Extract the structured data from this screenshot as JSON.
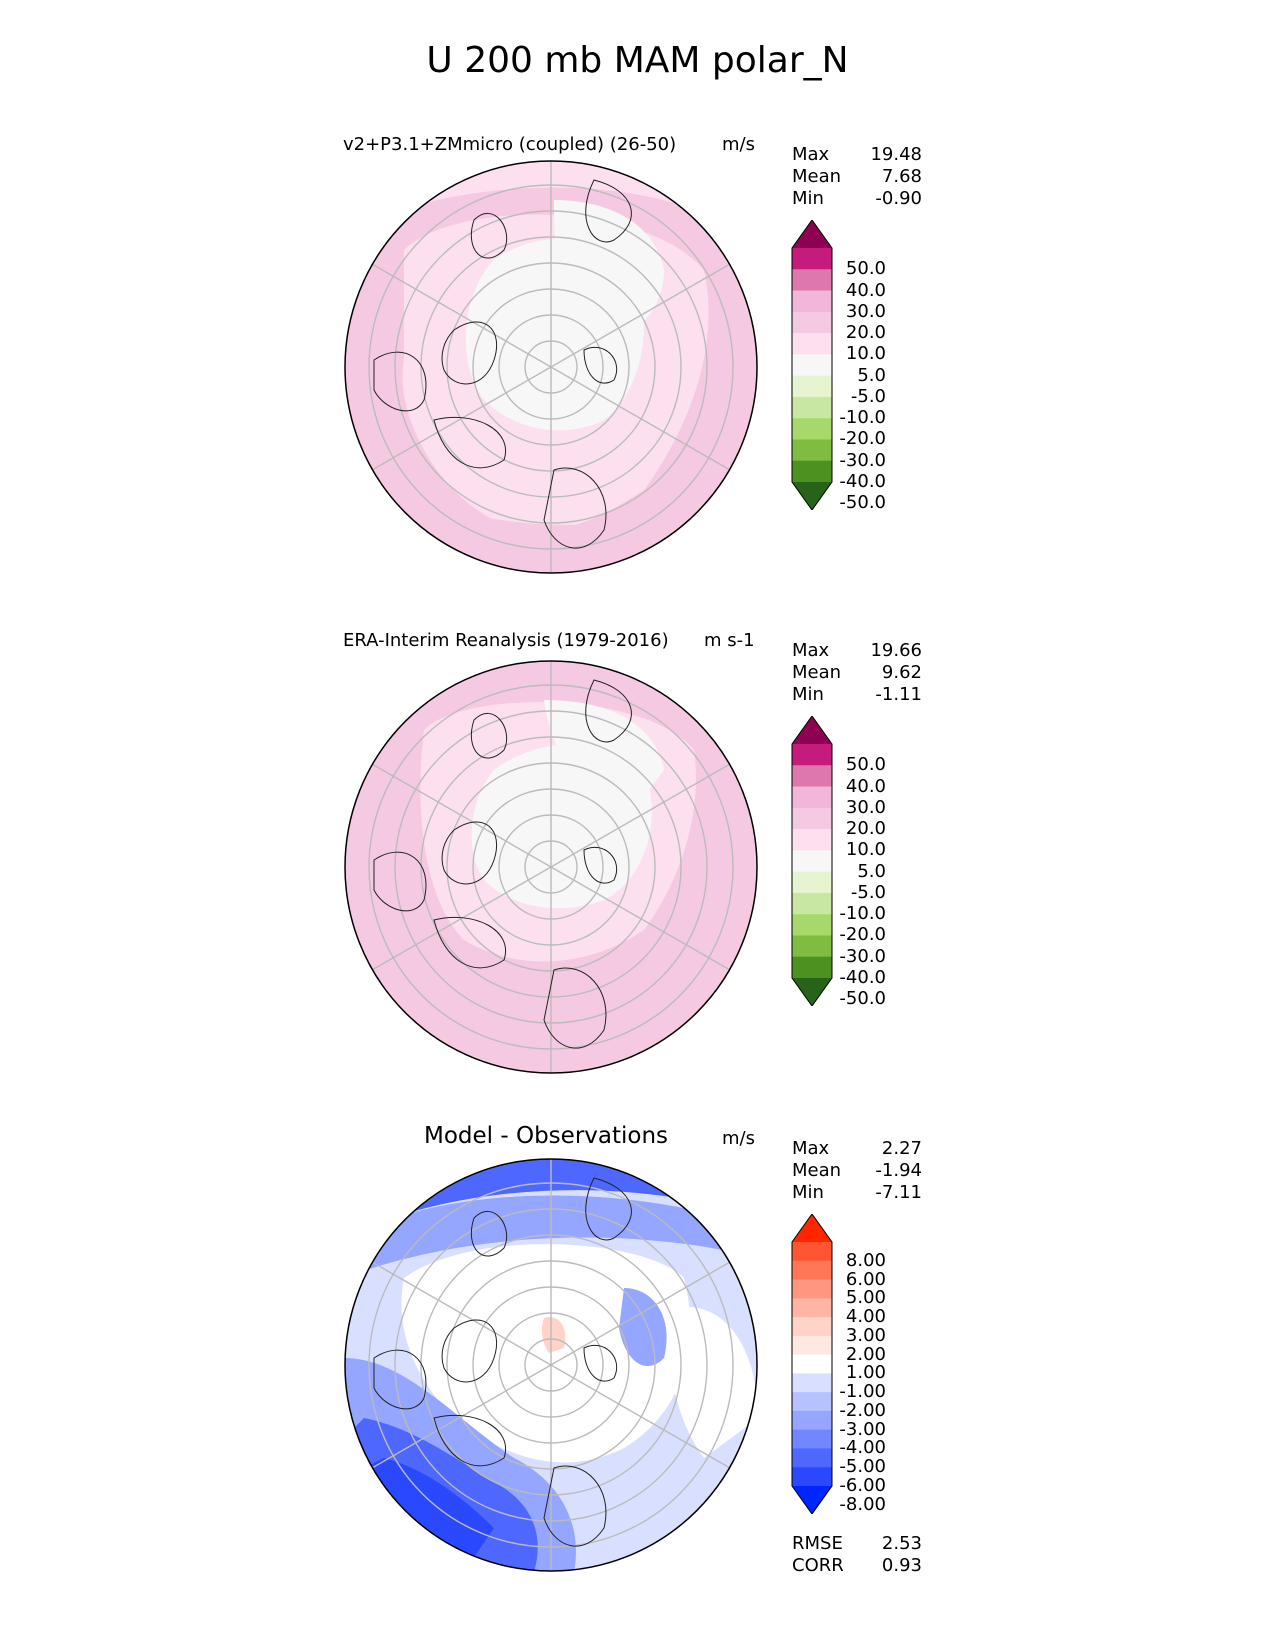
{
  "figure_title": "U 200 mb MAM polar_N",
  "panels": [
    {
      "title": "v2+P3.1+ZMmicro (coupled) (26-50)",
      "units": "m/s",
      "stats": [
        {
          "label": "Max",
          "value": "19.48"
        },
        {
          "label": "Mean",
          "value": "7.68"
        },
        {
          "label": "Min",
          "value": "-0.90"
        }
      ],
      "colorbar": "wind"
    },
    {
      "title": "ERA-Interim Reanalysis (1979-2016)",
      "units": "m s-1",
      "stats": [
        {
          "label": "Max",
          "value": "19.66"
        },
        {
          "label": "Mean",
          "value": "9.62"
        },
        {
          "label": "Min",
          "value": "-1.11"
        }
      ],
      "colorbar": "wind"
    },
    {
      "title": "Model - Observations",
      "units": "m/s",
      "stats": [
        {
          "label": "Max",
          "value": "2.27"
        },
        {
          "label": "Mean",
          "value": "-1.94"
        },
        {
          "label": "Min",
          "value": "-7.11"
        }
      ],
      "colorbar": "diff"
    }
  ],
  "colorbars": {
    "wind": {
      "labels": [
        "50.0",
        "40.0",
        "30.0",
        "20.0",
        "10.0",
        "5.0",
        "-5.0",
        "-10.0",
        "-20.0",
        "-30.0",
        "-40.0",
        "-50.0"
      ],
      "colors": [
        "#8e0152",
        "#c51b7d",
        "#de77ae",
        "#f1b6da",
        "#f6c9e2",
        "#fde0ef",
        "#f7f7f7",
        "#e6f5d0",
        "#c8e7a3",
        "#a6d96a",
        "#7fbc41",
        "#4d9221",
        "#276419"
      ]
    },
    "diff": {
      "labels": [
        "8.00",
        "6.00",
        "5.00",
        "4.00",
        "3.00",
        "2.00",
        "1.00",
        "-1.00",
        "-2.00",
        "-3.00",
        "-4.00",
        "-5.00",
        "-6.00",
        "-8.00"
      ],
      "colors": [
        "#ff2600",
        "#ff5533",
        "#ff7756",
        "#ff9680",
        "#ffb5a3",
        "#ffd3c8",
        "#ffe8e2",
        "#ffffff",
        "#d9e0ff",
        "#b5c2ff",
        "#94a6ff",
        "#7187ff",
        "#4e68ff",
        "#2a49ff",
        "#0026ff"
      ]
    }
  },
  "footer": [
    {
      "label": "RMSE",
      "value": "2.53"
    },
    {
      "label": "CORR",
      "value": "0.93"
    }
  ]
}
